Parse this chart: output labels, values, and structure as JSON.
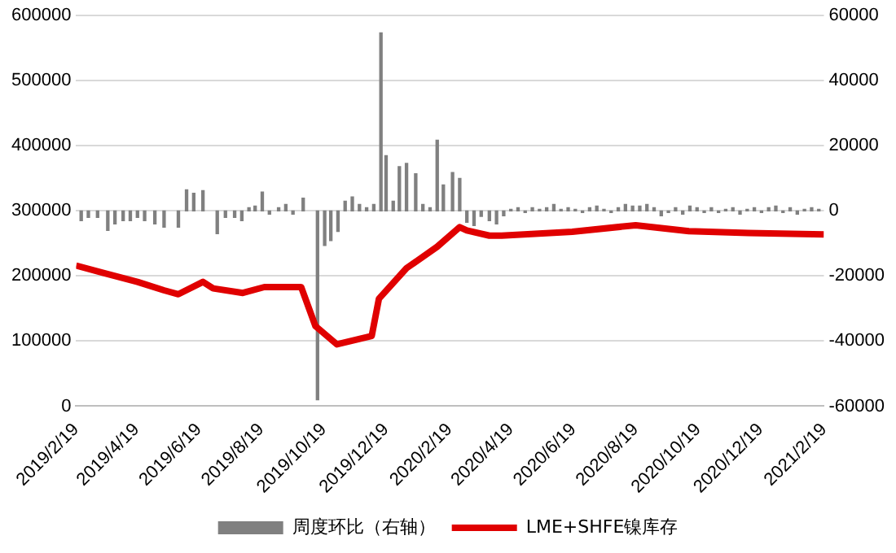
{
  "chart_data": {
    "type": "line",
    "xlim": [
      "2019-02-19",
      "2021-02-19"
    ],
    "xticks": [
      {
        "value": "2019-02-19",
        "label": "2019/2/19"
      },
      {
        "value": "2019-04-19",
        "label": "2019/4/19"
      },
      {
        "value": "2019-06-19",
        "label": "2019/6/19"
      },
      {
        "value": "2019-08-19",
        "label": "2019/8/19"
      },
      {
        "value": "2019-10-19",
        "label": "2019/10/19"
      },
      {
        "value": "2019-12-19",
        "label": "2019/12/19"
      },
      {
        "value": "2020-02-19",
        "label": "2020/2/19"
      },
      {
        "value": "2020-04-19",
        "label": "2020/4/19"
      },
      {
        "value": "2020-06-19",
        "label": "2020/6/19"
      },
      {
        "value": "2020-08-19",
        "label": "2020/8/19"
      },
      {
        "value": "2020-10-19",
        "label": "2020/10/19"
      },
      {
        "value": "2020-12-19",
        "label": "2020/12/19"
      },
      {
        "value": "2021-02-19",
        "label": "2021/2/19"
      }
    ],
    "ylim": [
      0,
      600000
    ],
    "yticks": [
      0,
      100000,
      200000,
      300000,
      400000,
      500000,
      600000
    ],
    "y2lim": [
      -60000,
      60000
    ],
    "y2ticks": [
      -60000,
      -40000,
      -20000,
      0,
      20000,
      40000,
      60000
    ],
    "grid": "y",
    "legend": "bottom",
    "marker": "none",
    "line_style": "solid",
    "series": [
      {
        "name": "周度环比（右轴）",
        "type": "bar",
        "axis": "y2",
        "color": "#808080",
        "x": [
          "2019-02-24",
          "2019-03-03",
          "2019-03-12",
          "2019-03-22",
          "2019-03-29",
          "2019-04-06",
          "2019-04-13",
          "2019-04-20",
          "2019-04-27",
          "2019-05-07",
          "2019-05-16",
          "2019-05-30",
          "2019-06-07",
          "2019-06-14",
          "2019-06-23",
          "2019-07-07",
          "2019-07-15",
          "2019-07-24",
          "2019-07-31",
          "2019-08-07",
          "2019-08-13",
          "2019-08-20",
          "2019-08-27",
          "2019-09-05",
          "2019-09-12",
          "2019-09-19",
          "2019-09-29",
          "2019-10-13",
          "2019-10-20",
          "2019-10-26",
          "2019-11-02",
          "2019-11-09",
          "2019-11-16",
          "2019-11-23",
          "2019-11-30",
          "2019-12-07",
          "2019-12-14",
          "2019-12-19",
          "2019-12-26",
          "2020-01-01",
          "2020-01-08",
          "2020-01-17",
          "2020-01-24",
          "2020-01-31",
          "2020-02-07",
          "2020-02-13",
          "2020-02-22",
          "2020-02-29",
          "2020-03-07",
          "2020-03-14",
          "2020-03-21",
          "2020-03-29",
          "2020-04-05",
          "2020-04-12",
          "2020-04-19",
          "2020-04-26",
          "2020-05-03",
          "2020-05-10",
          "2020-05-17",
          "2020-05-24",
          "2020-05-31",
          "2020-06-07",
          "2020-06-14",
          "2020-06-21",
          "2020-06-28",
          "2020-07-05",
          "2020-07-12",
          "2020-07-19",
          "2020-07-26",
          "2020-08-02",
          "2020-08-09",
          "2020-08-16",
          "2020-08-23",
          "2020-08-30",
          "2020-09-06",
          "2020-09-13",
          "2020-09-20",
          "2020-09-27",
          "2020-10-04",
          "2020-10-11",
          "2020-10-18",
          "2020-10-25",
          "2020-11-01",
          "2020-11-08",
          "2020-11-15",
          "2020-11-22",
          "2020-11-29",
          "2020-12-06",
          "2020-12-13",
          "2020-12-20",
          "2020-12-27",
          "2021-01-03",
          "2021-01-10",
          "2021-01-17",
          "2021-01-24",
          "2021-01-31",
          "2021-02-07",
          "2021-02-14"
        ],
        "values": [
          -3000,
          -2000,
          -2000,
          -6000,
          -4000,
          -3000,
          -3000,
          -2000,
          -3000,
          -4000,
          -5000,
          -5000,
          6500,
          5400,
          6200,
          -7000,
          -2000,
          -2000,
          -3000,
          1000,
          1500,
          5800,
          -1000,
          1000,
          2000,
          -1000,
          3900,
          -58000,
          -10600,
          -9100,
          -6300,
          3000,
          4300,
          2000,
          1000,
          2000,
          54700,
          17000,
          3000,
          13600,
          14600,
          11400,
          2000,
          1000,
          21700,
          8000,
          11800,
          10000,
          -3500,
          -4500,
          -1700,
          -3000,
          -4000,
          -1500,
          500,
          1000,
          -500,
          1000,
          500,
          1000,
          2000,
          500,
          1000,
          500,
          -500,
          1000,
          1500,
          500,
          -500,
          1000,
          2000,
          1500,
          1500,
          2000,
          1000,
          -1500,
          -500,
          1000,
          -1000,
          1500,
          1000,
          -500,
          1000,
          -500,
          500,
          1000,
          -1000,
          500,
          1000,
          -500,
          1000,
          1500,
          -500,
          1000,
          -1000,
          500,
          1000,
          500
        ]
      },
      {
        "name": "LME+SHFE镍库存",
        "color": "#e00000",
        "x": [
          "2019-02-19",
          "2019-03-17",
          "2019-04-20",
          "2019-05-16",
          "2019-05-30",
          "2019-06-23",
          "2019-07-03",
          "2019-08-01",
          "2019-08-22",
          "2019-09-27",
          "2019-10-11",
          "2019-11-01",
          "2019-12-05",
          "2019-12-12",
          "2020-01-08",
          "2020-02-07",
          "2020-02-29",
          "2020-03-07",
          "2020-03-29",
          "2020-04-10",
          "2020-06-18",
          "2020-08-19",
          "2020-10-10",
          "2020-12-07",
          "2021-02-19"
        ],
        "values": [
          216000,
          205000,
          191000,
          178000,
          172000,
          191000,
          181000,
          174000,
          183000,
          183000,
          123000,
          95000,
          108000,
          165000,
          212000,
          245000,
          275000,
          270000,
          262000,
          262000,
          268000,
          278000,
          269000,
          266000,
          264000
        ]
      }
    ]
  }
}
